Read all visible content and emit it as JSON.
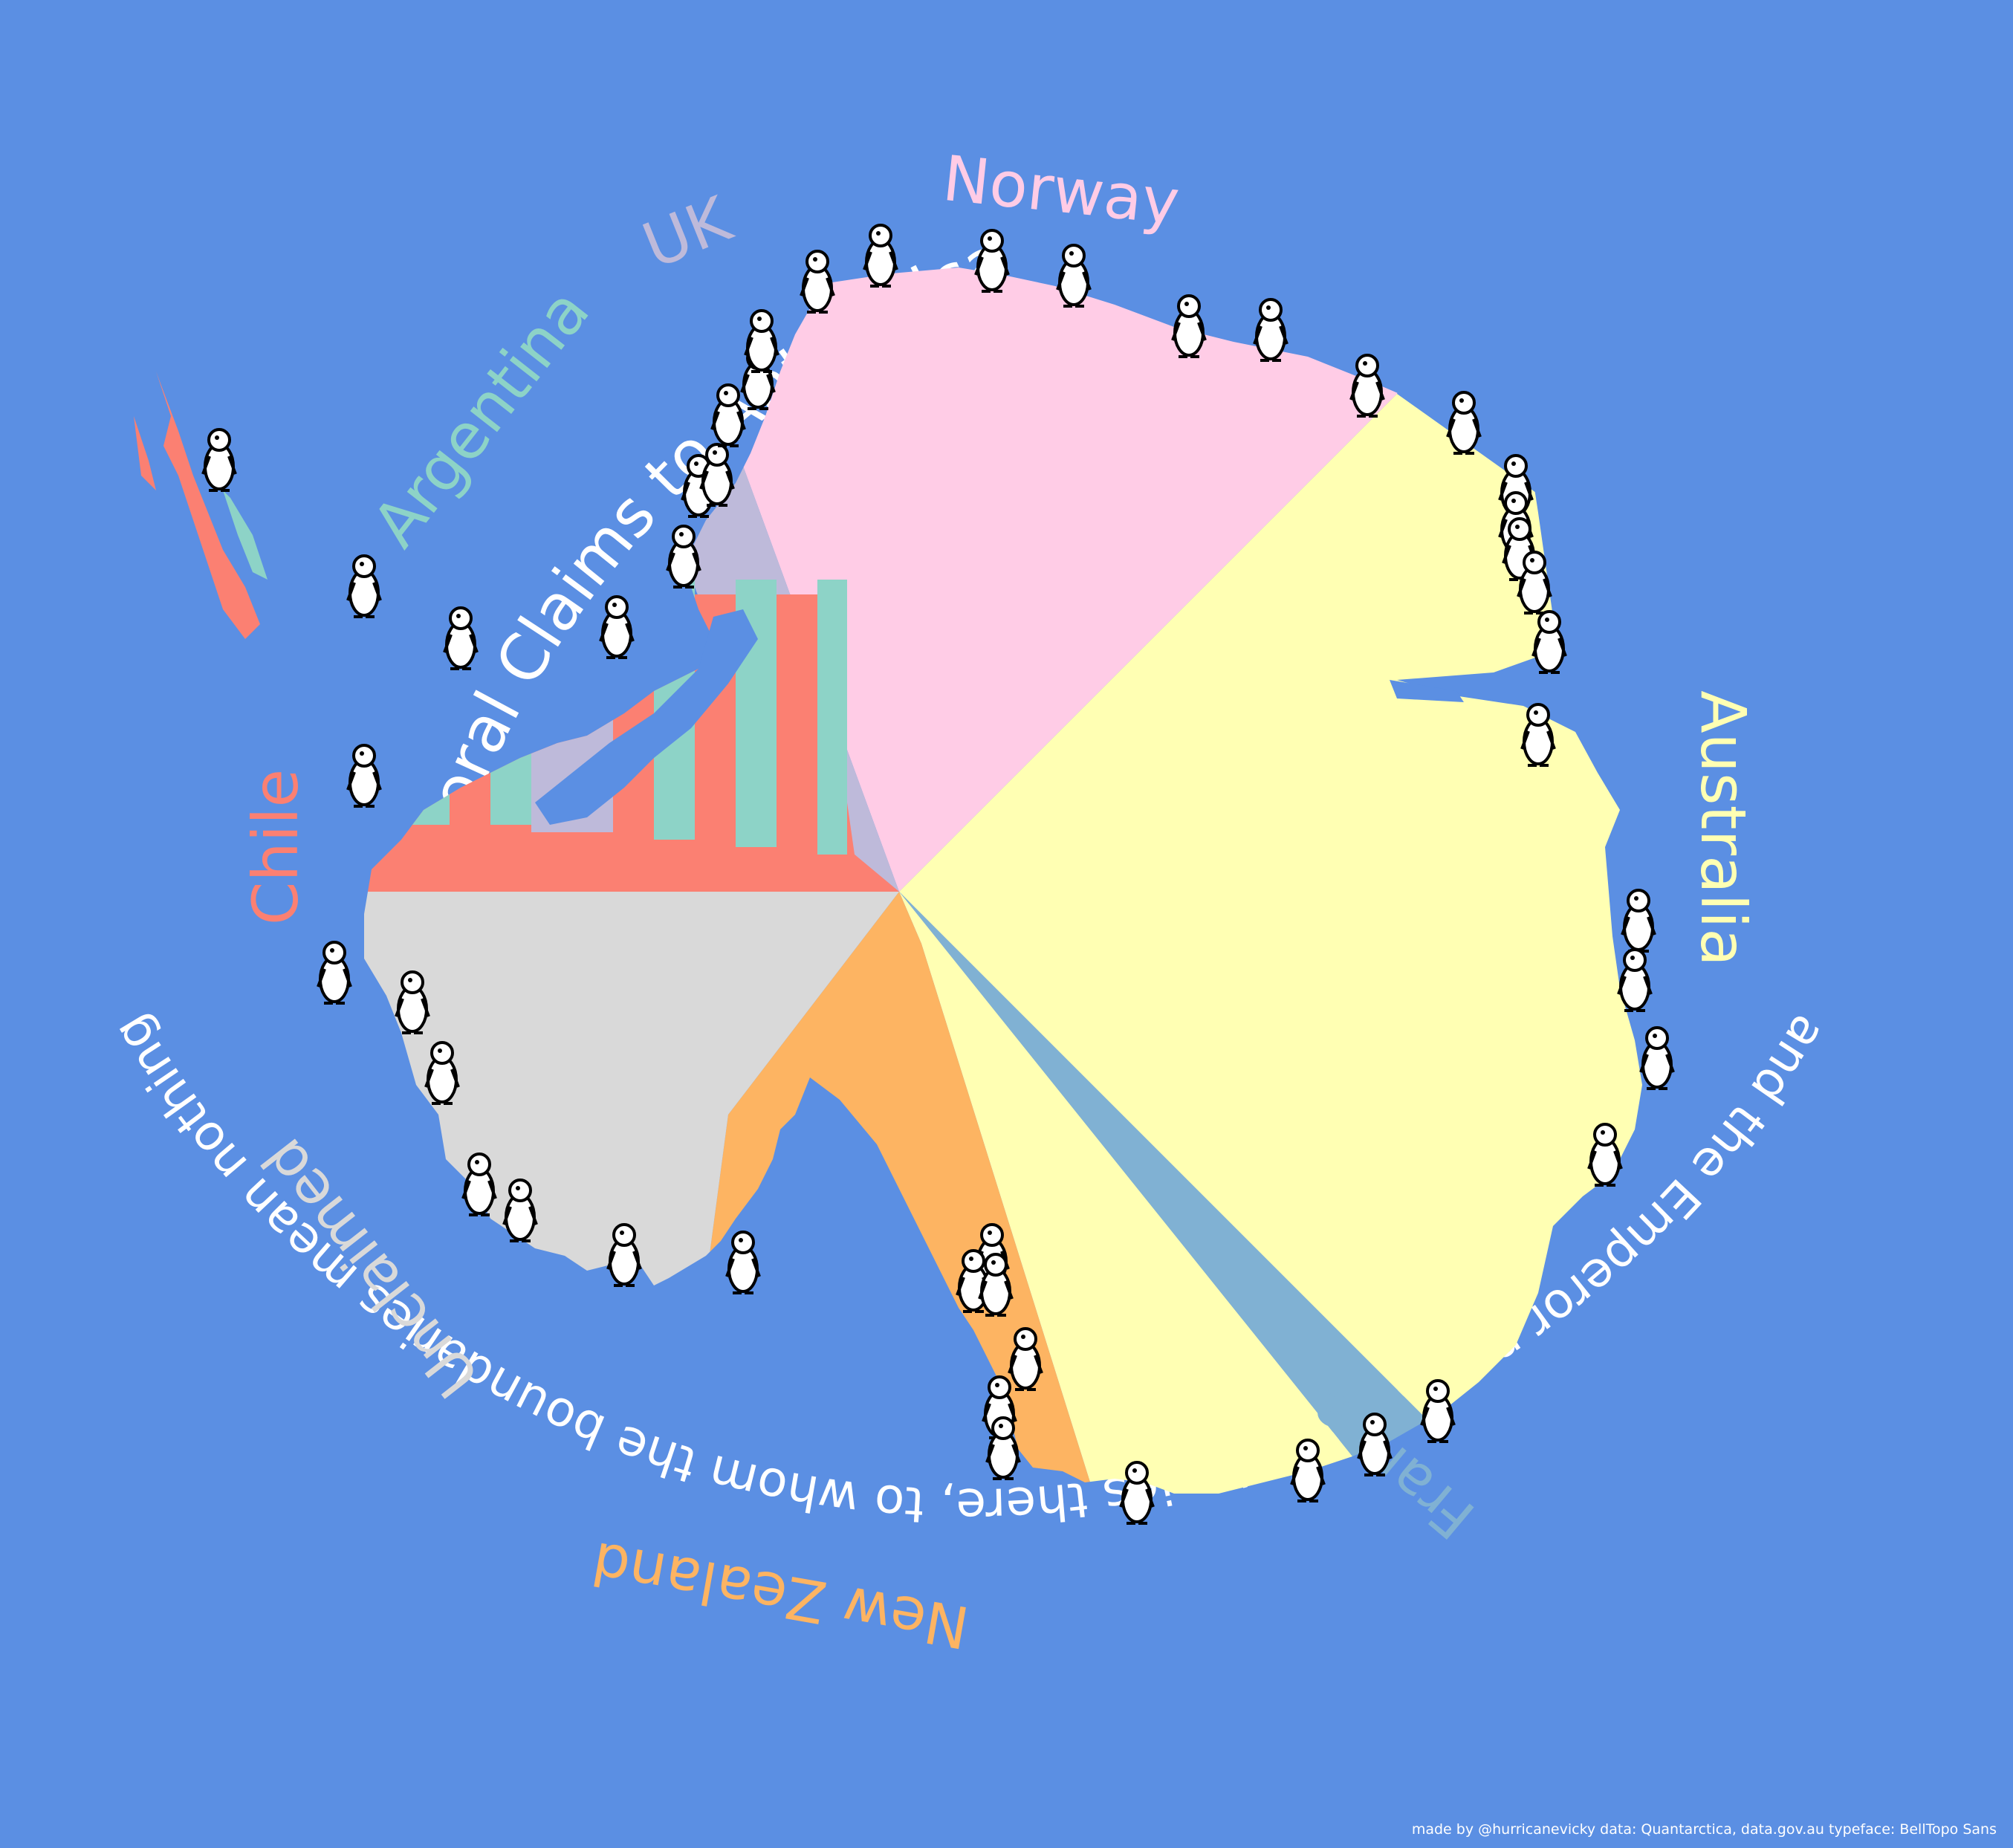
{
  "title": "Territoral Claims to Antarctica",
  "subtitle": "and the Emperor penguins colonies there, to whom the boundaries mean nothing",
  "credit": "made by @hurricanevicky  data: Quantarctica, data.gov.au  typeface: BellTopo Sans",
  "colors": {
    "ocean": "#5b8fe3",
    "norway": "#ffcce6",
    "australia": "#ffffb3",
    "france": "#80b1d3",
    "new_zealand": "#fdb462",
    "unclaimed": "#d9d9d9",
    "chile": "#fb8072",
    "argentina": "#8dd3c7",
    "uk": "#bebada"
  },
  "claims": [
    {
      "name": "Norway",
      "color": "#ffcce6"
    },
    {
      "name": "Australia",
      "color": "#ffffb3"
    },
    {
      "name": "France",
      "color": "#80b1d3"
    },
    {
      "name": "New Zealand",
      "color": "#fdb462"
    },
    {
      "name": "Unclaimed",
      "color": "#d9d9d9"
    },
    {
      "name": "Chile",
      "color": "#fb8072"
    },
    {
      "name": "Argentina",
      "color": "#8dd3c7"
    },
    {
      "name": "UK",
      "color": "#bebada"
    }
  ],
  "penguin_icon": "penguin-icon"
}
